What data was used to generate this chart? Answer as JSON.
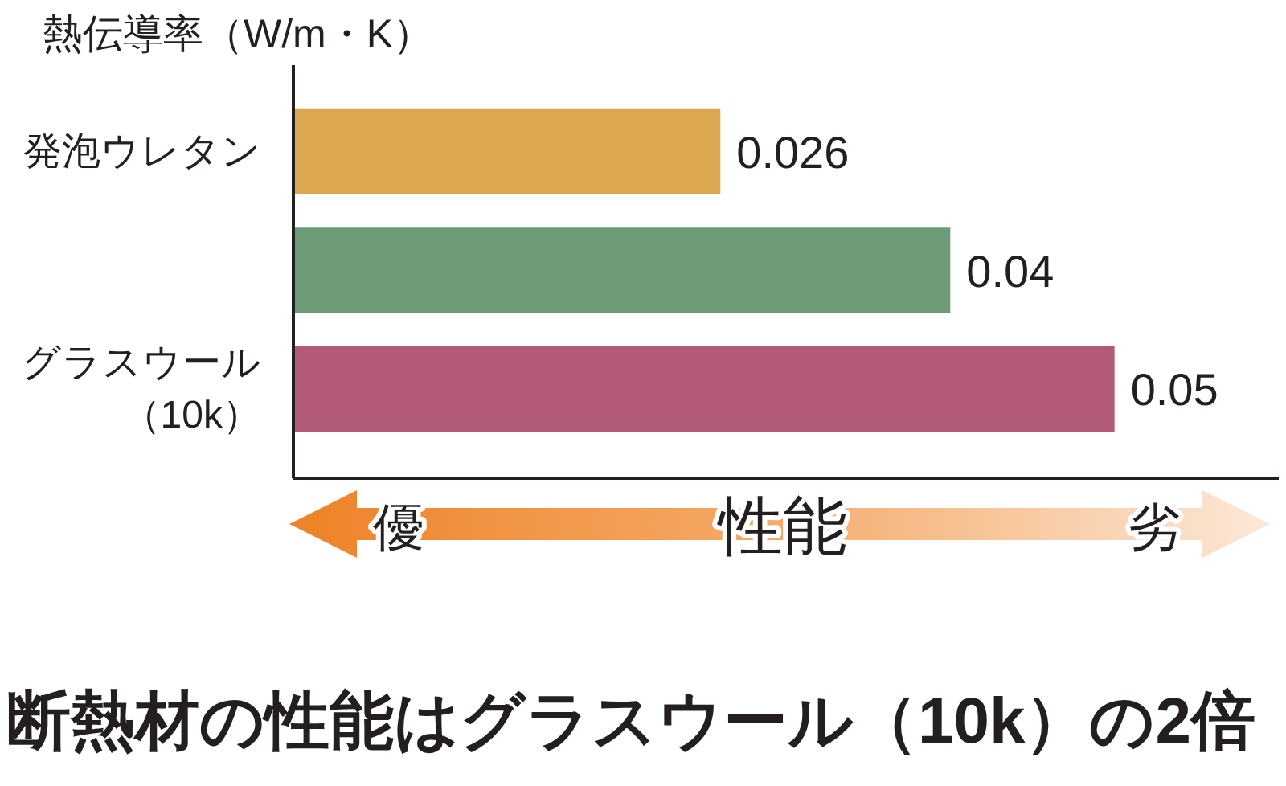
{
  "chart_data": {
    "type": "bar",
    "orientation": "horizontal",
    "title": "熱伝導率（W/m・K）",
    "categories": [
      "発泡ウレタン",
      null,
      "グラスウール（10k）"
    ],
    "values": [
      0.026,
      0.04,
      0.05
    ],
    "colors": [
      "#dba84f",
      "#6d9b78",
      "#b45a79"
    ],
    "xlim": [
      0,
      0.06
    ],
    "data_labels": true,
    "tick_labels": "y",
    "grid": false,
    "annotations": [
      "優",
      "性能",
      "劣",
      "断熱材の性能はグラスウール（10k）の2倍"
    ]
  }
}
